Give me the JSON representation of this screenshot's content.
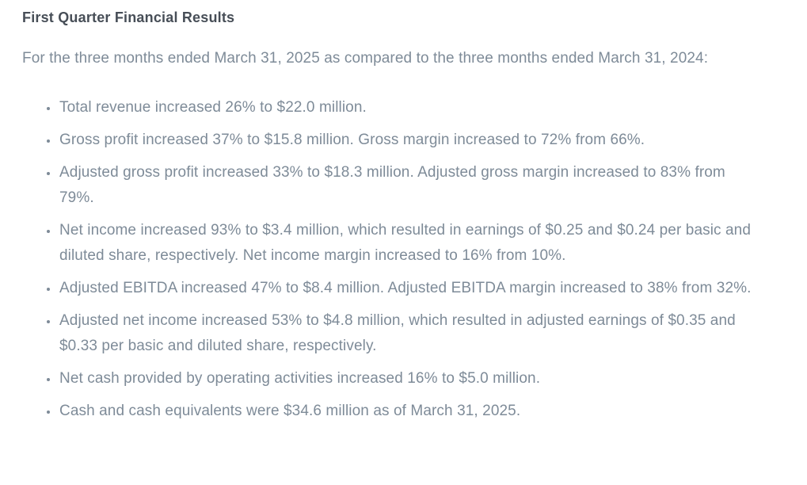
{
  "document": {
    "title": "First Quarter Financial Results",
    "intro": "For the three months ended March 31, 2025 as compared to the three months ended March 31, 2024:",
    "bullets": [
      "Total revenue increased 26% to $22.0 million.",
      "Gross profit increased 37% to $15.8 million. Gross margin increased to 72% from 66%.",
      "Adjusted gross profit increased 33% to $18.3 million. Adjusted gross margin increased to 83% from 79%.",
      "Net income increased 93% to $3.4 million, which resulted in earnings of $0.25 and $0.24 per basic and diluted share, respectively. Net income margin increased to 16% from 10%.",
      "Adjusted EBITDA increased 47% to $8.4 million. Adjusted EBITDA margin increased to 38% from 32%.",
      "Adjusted net income increased 53% to $4.8 million, which resulted in adjusted earnings of $0.35 and $0.33 per basic and diluted share, respectively.",
      "Net cash provided by operating activities increased 16% to $5.0 million.",
      "Cash and cash equivalents were $34.6 million as of March 31, 2025."
    ],
    "colors": {
      "heading_text": "#474e57",
      "body_text": "#7e8b98",
      "background": "#ffffff"
    }
  }
}
